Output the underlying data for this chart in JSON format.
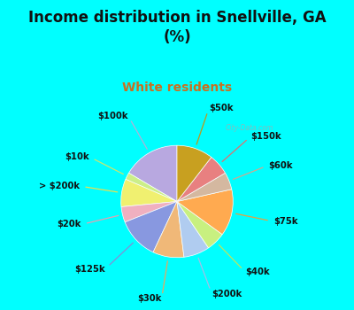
{
  "title": "Income distribution in Snellville, GA\n(%)",
  "subtitle": "White residents",
  "title_color": "#111111",
  "subtitle_color": "#c87020",
  "bg_cyan": "#00ffff",
  "pie_area_color_tl": "#e8f8f0",
  "pie_area_color_br": "#d0eee0",
  "watermark": "City-Data.com",
  "labels": [
    "$100k",
    "$10k",
    "> $200k",
    "$20k",
    "$125k",
    "$30k",
    "$200k",
    "$40k",
    "$75k",
    "$60k",
    "$150k",
    "$50k"
  ],
  "values": [
    16.5,
    2.0,
    8.0,
    4.5,
    12.0,
    9.0,
    7.5,
    5.5,
    13.5,
    5.0,
    6.0,
    10.5
  ],
  "colors": [
    "#b8a8e0",
    "#ccee88",
    "#f0f070",
    "#f0b0c0",
    "#8898e0",
    "#f0b878",
    "#b0ccf0",
    "#c8f080",
    "#ffaa50",
    "#d4b8a0",
    "#e88080",
    "#c8a020"
  ],
  "line_colors": [
    "#b0b0d8",
    "#c8e870",
    "#e8e050",
    "#e8a0b0",
    "#8090d8",
    "#e8a860",
    "#a0c0e8",
    "#b8e860",
    "#e8a040",
    "#ccaa90",
    "#e07070",
    "#c09818"
  ],
  "startangle": 90,
  "figsize": [
    4.0,
    3.5
  ],
  "dpi": 100,
  "title_fontsize": 12,
  "subtitle_fontsize": 10,
  "label_fontsize": 7.2
}
